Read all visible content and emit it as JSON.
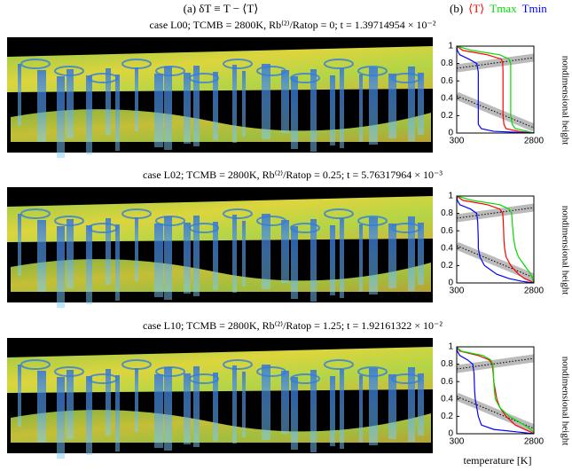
{
  "header": {
    "panel_a": "(a) δT ≡ T − ⟨T⟩",
    "panel_b": "(b)"
  },
  "chart_data": [
    {
      "type": "line",
      "title": "case L00; TCMB = 2800K, Rb⁽²⁾/Ratop = 0; t = 1.39714954 × 10⁻²",
      "y": [
        0,
        0.02,
        0.05,
        0.1,
        0.2,
        0.3,
        0.4,
        0.5,
        0.6,
        0.7,
        0.8,
        0.85,
        0.9,
        0.95,
        1
      ],
      "series": [
        {
          "name": "⟨T⟩",
          "color": "#ff0000",
          "values": [
            2800,
            2300,
            1900,
            1830,
            1800,
            1800,
            1800,
            1800,
            1800,
            1800,
            1790,
            1750,
            1300,
            500,
            300
          ]
        },
        {
          "name": "Tmax",
          "color": "#00dd00",
          "values": [
            2800,
            2600,
            2200,
            2100,
            2050,
            2050,
            2050,
            2050,
            2050,
            2050,
            2050,
            2000,
            1700,
            800,
            300
          ]
        },
        {
          "name": "Tmin",
          "color": "#0000ff",
          "values": [
            2800,
            1500,
            1100,
            1000,
            1000,
            1000,
            1000,
            1000,
            1000,
            1000,
            950,
            700,
            400,
            320,
            300
          ]
        }
      ],
      "xlim": [
        300,
        2800
      ],
      "xticks": [
        300,
        2800
      ],
      "ylim": [
        0,
        1
      ],
      "yticks": [
        0,
        0.2,
        0.4,
        0.6,
        0.8,
        1
      ],
      "ylabel": "nondimensional height"
    },
    {
      "type": "line",
      "title": "case L02; TCMB = 2800K, Rb⁽²⁾/Ratop = 0.25; t = 5.76317964 × 10⁻³",
      "y": [
        0,
        0.02,
        0.05,
        0.1,
        0.2,
        0.3,
        0.4,
        0.5,
        0.6,
        0.7,
        0.8,
        0.85,
        0.9,
        0.95,
        1
      ],
      "series": [
        {
          "name": "⟨T⟩",
          "color": "#ff0000",
          "values": [
            2800,
            2700,
            2500,
            2300,
            2050,
            1900,
            1850,
            1830,
            1820,
            1810,
            1790,
            1700,
            1300,
            500,
            300
          ]
        },
        {
          "name": "Tmax",
          "color": "#00dd00",
          "values": [
            2800,
            2780,
            2750,
            2700,
            2500,
            2300,
            2200,
            2150,
            2120,
            2100,
            2080,
            2000,
            1700,
            800,
            300
          ]
        },
        {
          "name": "Tmin",
          "color": "#0000ff",
          "values": [
            2800,
            2400,
            2000,
            1600,
            1200,
            1050,
            1000,
            1000,
            990,
            980,
            950,
            750,
            400,
            320,
            300
          ]
        }
      ],
      "xlim": [
        300,
        2800
      ],
      "xticks": [
        300,
        2800
      ],
      "ylim": [
        0,
        1
      ],
      "yticks": [
        0,
        0.2,
        0.4,
        0.6,
        0.8,
        1
      ],
      "ylabel": "nondimensional height"
    },
    {
      "type": "line",
      "title": "case L10; TCMB = 2800K, Rb⁽²⁾/Ratop = 1.25; t = 1.92161322 × 10⁻²",
      "y": [
        0,
        0.02,
        0.05,
        0.1,
        0.2,
        0.3,
        0.4,
        0.5,
        0.6,
        0.7,
        0.8,
        0.85,
        0.9,
        0.95,
        1
      ],
      "series": [
        {
          "name": "⟨T⟩",
          "color": "#ff0000",
          "values": [
            2800,
            2700,
            2500,
            2200,
            1900,
            1700,
            1600,
            1550,
            1500,
            1480,
            1450,
            1350,
            1000,
            400,
            300
          ]
        },
        {
          "name": "Tmax",
          "color": "#00dd00",
          "values": [
            2800,
            2780,
            2700,
            2500,
            2000,
            1700,
            1550,
            1520,
            1500,
            1490,
            1470,
            1400,
            1150,
            450,
            300
          ]
        },
        {
          "name": "Tmin",
          "color": "#0000ff",
          "values": [
            2800,
            2300,
            1500,
            1100,
            1000,
            950,
            900,
            880,
            870,
            860,
            820,
            650,
            400,
            320,
            300
          ]
        }
      ],
      "xlim": [
        300,
        2800
      ],
      "xticks": [
        300,
        2800
      ],
      "ylim": [
        0,
        1
      ],
      "yticks": [
        0,
        0.2,
        0.4,
        0.6,
        0.8,
        1
      ],
      "ylabel": "nondimensional height",
      "xlabel": "temperature [K]"
    }
  ]
}
